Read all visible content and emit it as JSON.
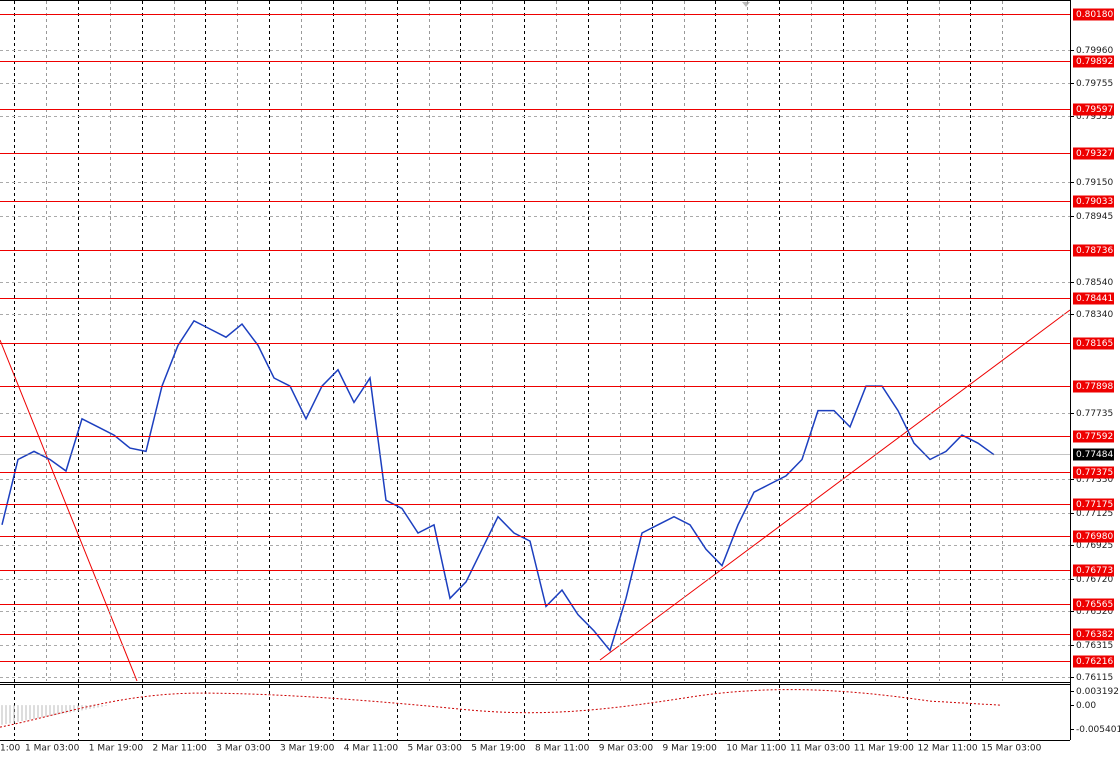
{
  "chart_data": {
    "type": "line",
    "color": "#1c3fbf",
    "ylim": [
      0.76093,
      0.80266
    ],
    "yticks": [
      {
        "value": 0.7996,
        "label": "0.79960"
      },
      {
        "value": 0.79755,
        "label": "0.79755"
      },
      {
        "value": 0.79555,
        "label": "0.79555"
      },
      {
        "value": 0.7915,
        "label": "0.79150"
      },
      {
        "value": 0.78945,
        "label": "0.78945"
      },
      {
        "value": 0.7854,
        "label": "0.78540"
      },
      {
        "value": 0.7834,
        "label": "0.78340"
      },
      {
        "value": 0.77735,
        "label": "0.77735"
      },
      {
        "value": 0.7733,
        "label": "0.77330"
      },
      {
        "value": 0.77125,
        "label": "0.77125"
      },
      {
        "value": 0.76925,
        "label": "0.76925"
      },
      {
        "value": 0.7672,
        "label": "0.76720"
      },
      {
        "value": 0.7652,
        "label": "0.76520"
      },
      {
        "value": 0.76315,
        "label": "0.76315"
      },
      {
        "value": 0.76115,
        "label": "0.76115"
      }
    ],
    "levels": [
      {
        "value": 0.8018,
        "label": "0.80180"
      },
      {
        "value": 0.79892,
        "label": "0.79892"
      },
      {
        "value": 0.79597,
        "label": "0.79597"
      },
      {
        "value": 0.79327,
        "label": "0.79327"
      },
      {
        "value": 0.79033,
        "label": "0.79033"
      },
      {
        "value": 0.78736,
        "label": "0.78736"
      },
      {
        "value": 0.78441,
        "label": "0.78441"
      },
      {
        "value": 0.78165,
        "label": "0.78165"
      },
      {
        "value": 0.77898,
        "label": "0.77898"
      },
      {
        "value": 0.77592,
        "label": "0.77592"
      },
      {
        "value": 0.77375,
        "label": "0.77375"
      },
      {
        "value": 0.77175,
        "label": "0.77175"
      },
      {
        "value": 0.7698,
        "label": "0.76980"
      },
      {
        "value": 0.76773,
        "label": "0.76773"
      },
      {
        "value": 0.76565,
        "label": "0.76565"
      },
      {
        "value": 0.76382,
        "label": "0.76382"
      },
      {
        "value": 0.76216,
        "label": "0.76216"
      }
    ],
    "current_price": {
      "value": 0.77484,
      "label": "0.77484"
    },
    "values": [
      0.7705,
      0.7745,
      0.775,
      0.7745,
      0.7738,
      0.777,
      0.7765,
      0.776,
      0.7752,
      0.775,
      0.779,
      0.7815,
      0.783,
      0.7825,
      0.782,
      0.7828,
      0.7815,
      0.7795,
      0.779,
      0.777,
      0.779,
      0.78,
      0.778,
      0.7795,
      0.772,
      0.7715,
      0.77,
      0.7705,
      0.766,
      0.767,
      0.769,
      0.771,
      0.77,
      0.7695,
      0.7655,
      0.7665,
      0.765,
      0.764,
      0.7628,
      0.766,
      0.77,
      0.7705,
      0.771,
      0.7705,
      0.769,
      0.768,
      0.7705,
      0.7725,
      0.773,
      0.7735,
      0.7745,
      0.7775,
      0.7775,
      0.7765,
      0.779,
      0.779,
      0.7775,
      0.7755,
      0.7745,
      0.775,
      0.776,
      0.7755,
      0.7748
    ],
    "time_labels": [
      "1:00",
      "1 Mar 03:00",
      "1 Mar 19:00",
      "2 Mar 11:00",
      "3 Mar 03:00",
      "3 Mar 19:00",
      "4 Mar 11:00",
      "5 Mar 03:00",
      "5 Mar 19:00",
      "8 Mar 11:00",
      "9 Mar 03:00",
      "9 Mar 19:00",
      "10 Mar 11:00",
      "11 Mar 03:00",
      "11 Mar 19:00",
      "12 Mar 11:00",
      "15 Mar 03:00"
    ],
    "indicator": {
      "ylim": [
        -0.00782,
        0.00451
      ],
      "yticks": [
        0.003192,
        {
          "value": 0,
          "label": "0.00"
        },
        -0.005401
      ]
    }
  }
}
